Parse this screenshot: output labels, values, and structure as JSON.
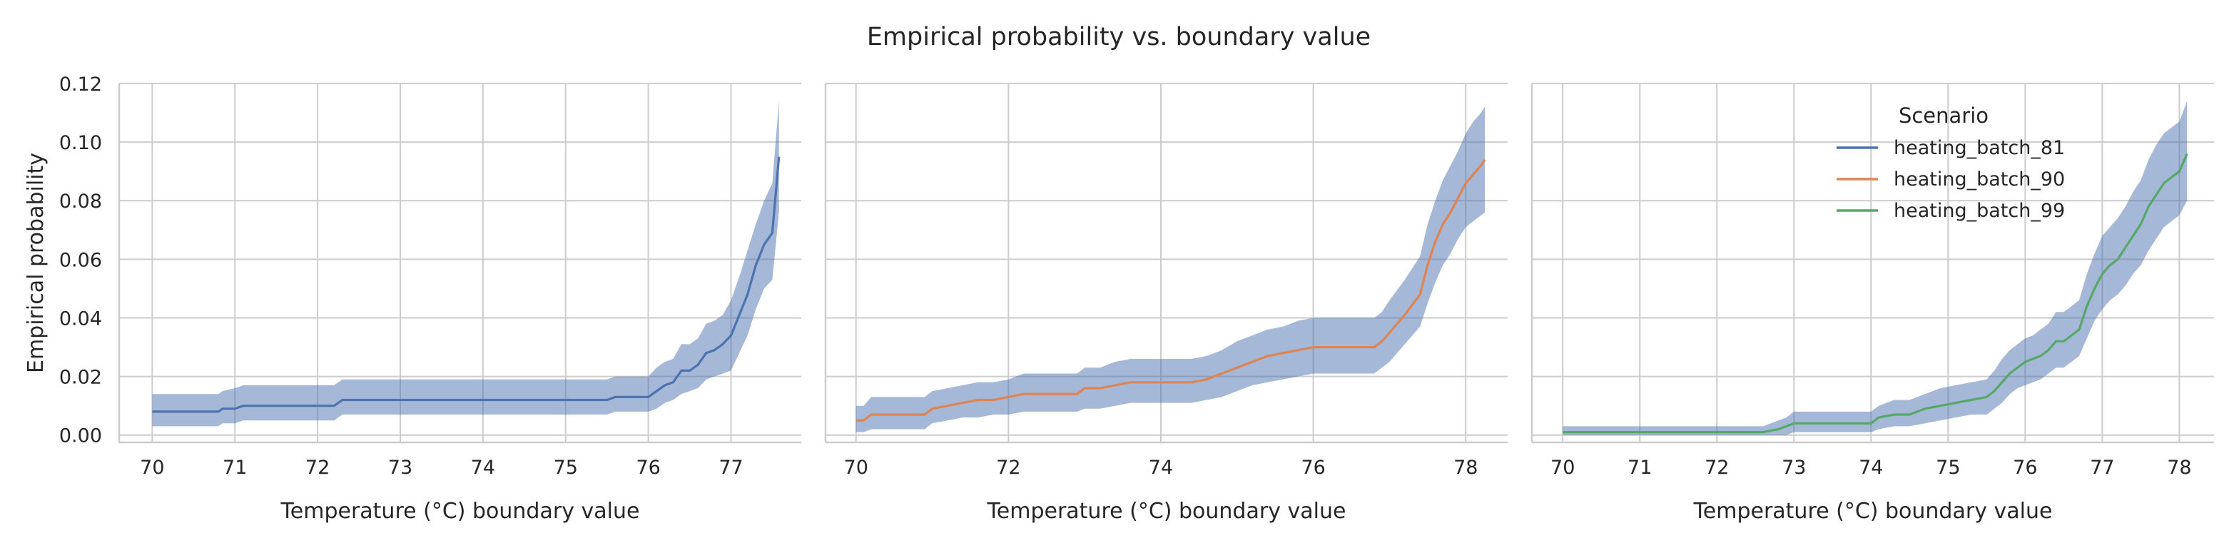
{
  "figure_title": "Empirical probability vs. boundary value",
  "chart_data": [
    {
      "type": "line",
      "xlabel": "Temperature (°C) boundary value",
      "ylabel": "Empirical probability",
      "xlim": [
        69.6,
        77.85
      ],
      "ylim": [
        -0.0025,
        0.12
      ],
      "xticks": [
        70,
        71,
        72,
        73,
        74,
        75,
        76,
        77
      ],
      "yticks": [
        0.0,
        0.02,
        0.04,
        0.06,
        0.08,
        0.1,
        0.12
      ],
      "ytick_labels": [
        "0.00",
        "0.02",
        "0.04",
        "0.06",
        "0.08",
        "0.10",
        "0.12"
      ],
      "grid": true,
      "series": [
        {
          "name": "heating_batch_81",
          "color": "#4c72b0",
          "x": [
            70.0,
            70.8,
            70.85,
            71.0,
            71.1,
            72.2,
            72.3,
            75.5,
            75.6,
            76.0,
            76.1,
            76.2,
            76.3,
            76.4,
            76.5,
            76.6,
            76.7,
            76.8,
            76.9,
            77.0,
            77.1,
            77.2,
            77.3,
            77.4,
            77.5,
            77.58
          ],
          "y": [
            0.008,
            0.008,
            0.009,
            0.009,
            0.01,
            0.01,
            0.012,
            0.012,
            0.013,
            0.013,
            0.015,
            0.017,
            0.018,
            0.022,
            0.022,
            0.024,
            0.028,
            0.029,
            0.031,
            0.034,
            0.041,
            0.048,
            0.058,
            0.065,
            0.069,
            0.095
          ],
          "lower": [
            0.003,
            0.003,
            0.004,
            0.004,
            0.005,
            0.005,
            0.007,
            0.007,
            0.008,
            0.008,
            0.009,
            0.011,
            0.012,
            0.014,
            0.015,
            0.016,
            0.019,
            0.02,
            0.021,
            0.022,
            0.028,
            0.034,
            0.043,
            0.05,
            0.053,
            0.076
          ],
          "upper": [
            0.014,
            0.014,
            0.015,
            0.016,
            0.017,
            0.017,
            0.019,
            0.019,
            0.02,
            0.02,
            0.023,
            0.025,
            0.026,
            0.031,
            0.031,
            0.033,
            0.038,
            0.039,
            0.041,
            0.046,
            0.054,
            0.063,
            0.072,
            0.08,
            0.086,
            0.114
          ]
        }
      ]
    },
    {
      "type": "line",
      "xlabel": "Temperature (°C) boundary value",
      "ylabel": "",
      "xlim": [
        69.6,
        78.55
      ],
      "ylim": [
        -0.0025,
        0.12
      ],
      "xticks": [
        70,
        72,
        74,
        76,
        78
      ],
      "yticks": [
        0.0,
        0.02,
        0.04,
        0.06,
        0.08,
        0.1,
        0.12
      ],
      "grid": true,
      "series": [
        {
          "name": "heating_batch_90",
          "color": "#dd8452",
          "x": [
            70.0,
            70.1,
            70.2,
            70.9,
            71.0,
            71.2,
            71.4,
            71.6,
            71.8,
            72.0,
            72.2,
            72.5,
            72.9,
            73.0,
            73.2,
            73.4,
            73.6,
            74.0,
            74.4,
            74.6,
            74.8,
            75.0,
            75.2,
            75.4,
            75.6,
            75.8,
            76.0,
            76.4,
            76.8,
            76.9,
            77.0,
            77.2,
            77.4,
            77.5,
            77.6,
            77.7,
            77.8,
            77.9,
            78.0,
            78.1,
            78.2,
            78.25
          ],
          "y": [
            0.005,
            0.005,
            0.007,
            0.007,
            0.009,
            0.01,
            0.011,
            0.012,
            0.012,
            0.013,
            0.014,
            0.014,
            0.014,
            0.016,
            0.016,
            0.017,
            0.018,
            0.018,
            0.018,
            0.019,
            0.021,
            0.023,
            0.025,
            0.027,
            0.028,
            0.029,
            0.03,
            0.03,
            0.03,
            0.032,
            0.035,
            0.041,
            0.048,
            0.058,
            0.066,
            0.072,
            0.076,
            0.081,
            0.086,
            0.089,
            0.092,
            0.094
          ],
          "lower": [
            0.001,
            0.001,
            0.002,
            0.002,
            0.004,
            0.005,
            0.006,
            0.006,
            0.007,
            0.007,
            0.008,
            0.008,
            0.008,
            0.009,
            0.009,
            0.01,
            0.011,
            0.011,
            0.011,
            0.012,
            0.013,
            0.015,
            0.017,
            0.018,
            0.019,
            0.02,
            0.021,
            0.021,
            0.021,
            0.023,
            0.025,
            0.031,
            0.037,
            0.045,
            0.052,
            0.058,
            0.062,
            0.067,
            0.071,
            0.073,
            0.075,
            0.076
          ],
          "upper": [
            0.01,
            0.01,
            0.013,
            0.013,
            0.015,
            0.016,
            0.017,
            0.018,
            0.018,
            0.019,
            0.021,
            0.021,
            0.021,
            0.023,
            0.023,
            0.025,
            0.026,
            0.026,
            0.026,
            0.027,
            0.029,
            0.032,
            0.034,
            0.036,
            0.037,
            0.039,
            0.04,
            0.04,
            0.04,
            0.042,
            0.046,
            0.053,
            0.061,
            0.072,
            0.08,
            0.087,
            0.092,
            0.097,
            0.103,
            0.107,
            0.11,
            0.112
          ]
        }
      ]
    },
    {
      "type": "line",
      "xlabel": "Temperature (°C) boundary value",
      "ylabel": "",
      "xlim": [
        69.6,
        78.45
      ],
      "ylim": [
        -0.0025,
        0.12
      ],
      "xticks": [
        70,
        71,
        72,
        73,
        74,
        75,
        76,
        77,
        78
      ],
      "yticks": [
        0.0,
        0.02,
        0.04,
        0.06,
        0.08,
        0.1,
        0.12
      ],
      "grid": true,
      "legend": {
        "title": "Scenario",
        "placement": "top-right",
        "entries": [
          {
            "label": "heating_batch_81",
            "color": "#4c72b0"
          },
          {
            "label": "heating_batch_90",
            "color": "#dd8452"
          },
          {
            "label": "heating_batch_99",
            "color": "#55a868"
          }
        ]
      },
      "series": [
        {
          "name": "heating_batch_99",
          "color": "#55a868",
          "x": [
            70.0,
            72.6,
            72.8,
            72.9,
            73.0,
            73.5,
            74.0,
            74.1,
            74.3,
            74.5,
            74.7,
            74.9,
            75.1,
            75.3,
            75.5,
            75.6,
            75.7,
            75.8,
            75.9,
            76.0,
            76.1,
            76.2,
            76.3,
            76.4,
            76.5,
            76.6,
            76.7,
            76.8,
            76.9,
            77.0,
            77.1,
            77.2,
            77.3,
            77.4,
            77.5,
            77.6,
            77.7,
            77.8,
            77.9,
            78.0,
            78.1
          ],
          "y": [
            0.001,
            0.001,
            0.002,
            0.003,
            0.004,
            0.004,
            0.004,
            0.006,
            0.007,
            0.007,
            0.009,
            0.01,
            0.011,
            0.012,
            0.013,
            0.015,
            0.018,
            0.021,
            0.023,
            0.025,
            0.026,
            0.027,
            0.029,
            0.032,
            0.032,
            0.034,
            0.036,
            0.044,
            0.05,
            0.055,
            0.058,
            0.06,
            0.064,
            0.068,
            0.072,
            0.078,
            0.082,
            0.086,
            0.088,
            0.09,
            0.096
          ],
          "lower": [
            0.0,
            0.0,
            0.0,
            0.0,
            0.001,
            0.001,
            0.001,
            0.002,
            0.003,
            0.003,
            0.004,
            0.005,
            0.006,
            0.007,
            0.007,
            0.009,
            0.011,
            0.014,
            0.016,
            0.017,
            0.018,
            0.019,
            0.021,
            0.023,
            0.023,
            0.025,
            0.027,
            0.033,
            0.039,
            0.043,
            0.046,
            0.048,
            0.051,
            0.055,
            0.058,
            0.063,
            0.067,
            0.071,
            0.073,
            0.075,
            0.08
          ],
          "upper": [
            0.003,
            0.003,
            0.005,
            0.006,
            0.008,
            0.008,
            0.008,
            0.01,
            0.012,
            0.012,
            0.014,
            0.016,
            0.017,
            0.018,
            0.019,
            0.022,
            0.026,
            0.029,
            0.031,
            0.033,
            0.034,
            0.036,
            0.038,
            0.042,
            0.042,
            0.044,
            0.046,
            0.055,
            0.062,
            0.068,
            0.071,
            0.074,
            0.078,
            0.083,
            0.087,
            0.094,
            0.099,
            0.103,
            0.105,
            0.107,
            0.114
          ]
        }
      ]
    }
  ]
}
